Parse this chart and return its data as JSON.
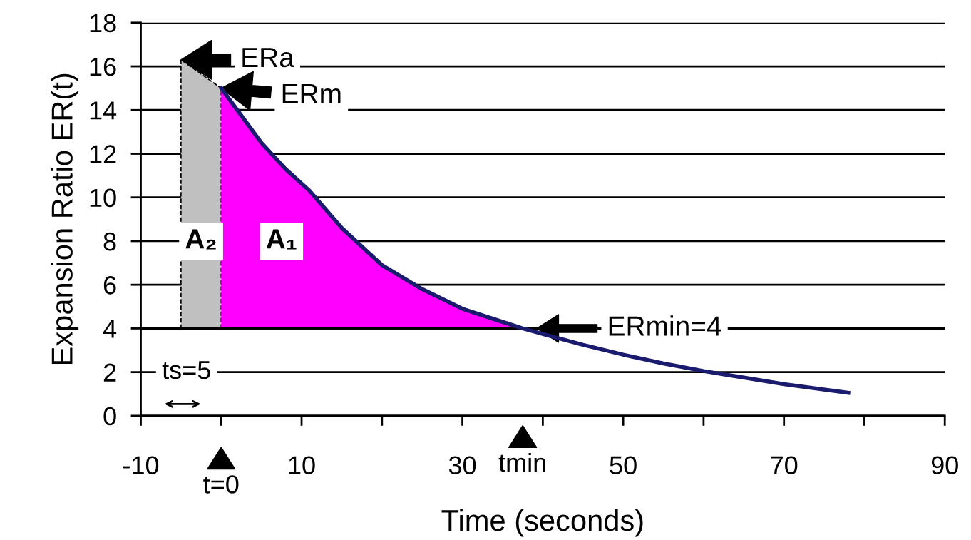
{
  "chart_data": {
    "type": "area",
    "xlabel": "Time (seconds)",
    "ylabel": "Expansion Ratio ER(t)",
    "xlim": [
      -10,
      90
    ],
    "xticks": [
      -10,
      {
        "value": 0,
        "label": null
      },
      10,
      {
        "value": 20,
        "label": null
      },
      30,
      {
        "value": 40,
        "label": null
      },
      50,
      {
        "value": 60,
        "label": null
      },
      70,
      {
        "value": 80,
        "label": null
      },
      90
    ],
    "ylim": [
      0,
      18
    ],
    "yticks": [
      0,
      2,
      4,
      6,
      8,
      10,
      12,
      14,
      16,
      18
    ],
    "grid": "y",
    "series": [
      {
        "color": "#c0c0c0",
        "line_style": "dashed",
        "x": [
          -5,
          0
        ],
        "values": [
          16.3,
          15
        ]
      },
      {
        "color": "#ff00ff",
        "x": [
          0,
          2,
          5,
          8,
          11,
          15,
          20,
          25,
          30,
          35,
          37.5
        ],
        "values": [
          15,
          14,
          12.5,
          11.3,
          10.3,
          8.6,
          6.9,
          5.8,
          4.9,
          4.3,
          4.0
        ]
      },
      {
        "type": "line",
        "color": "#1a1a6e",
        "x": [
          0,
          2,
          5,
          8,
          11,
          15,
          20,
          25,
          30,
          35,
          37.5,
          40,
          45,
          50,
          55,
          60,
          65,
          70,
          78
        ],
        "values": [
          15,
          14,
          12.5,
          11.3,
          10.3,
          8.6,
          6.9,
          5.8,
          4.9,
          4.3,
          4.0,
          3.75,
          3.25,
          2.8,
          2.4,
          2.05,
          1.75,
          1.45,
          1.05
        ]
      }
    ],
    "ref_lines": [
      {
        "axis": "y",
        "value": 4,
        "label": "ERmin=4"
      }
    ],
    "annotations": [
      {
        "text": "ERa",
        "x": -5,
        "y": 16.3
      },
      {
        "text": "ERm",
        "x": 0,
        "y": 15
      },
      "tmin",
      "t=0",
      "ts=5",
      "A₂",
      "A₁"
    ]
  }
}
